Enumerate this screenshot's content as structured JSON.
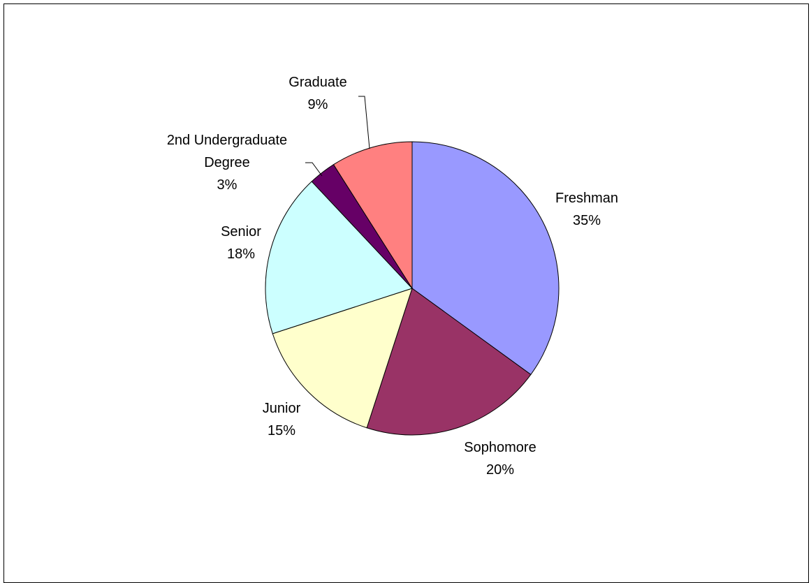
{
  "chart_data": {
    "type": "pie",
    "title": "",
    "start_angle_deg": 0,
    "direction": "clockwise",
    "slices": [
      {
        "label": "Freshman",
        "value": 35,
        "value_label": "35%",
        "color": "#9999FF"
      },
      {
        "label": "Sophomore",
        "value": 20,
        "value_label": "20%",
        "color": "#993366"
      },
      {
        "label": "Junior",
        "value": 15,
        "value_label": "15%",
        "color": "#FFFFCC"
      },
      {
        "label": "Senior",
        "value": 18,
        "value_label": "18%",
        "color": "#CCFFFF"
      },
      {
        "label": "2nd Undergraduate\nDegree",
        "value": 3,
        "value_label": "3%",
        "color": "#660066"
      },
      {
        "label": "Graduate",
        "value": 9,
        "value_label": "9%",
        "color": "#FF8080"
      }
    ]
  }
}
